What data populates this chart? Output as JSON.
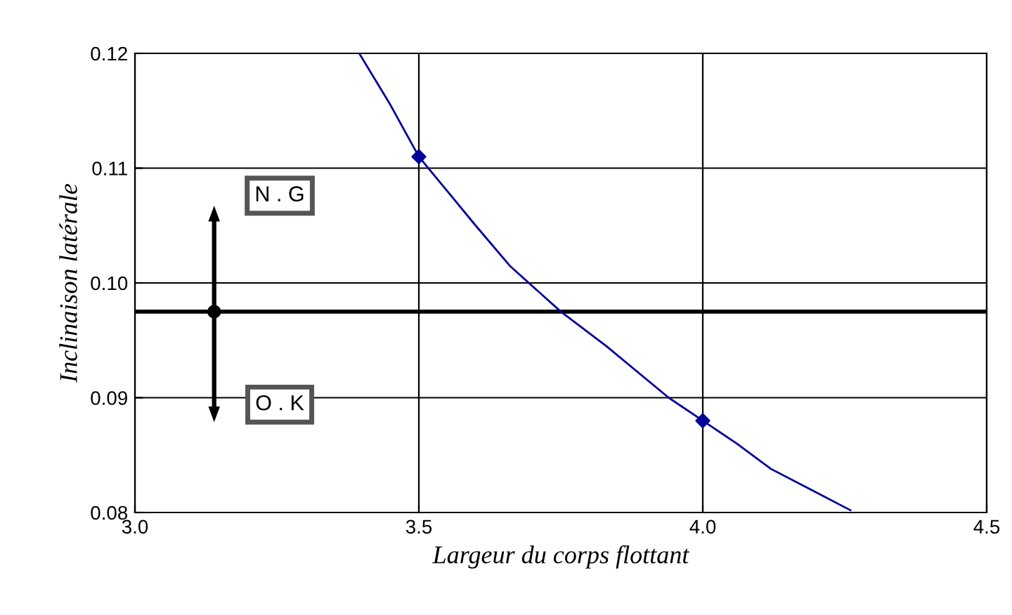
{
  "chart_data": {
    "type": "line",
    "xlabel": "Largeur du corps flottant",
    "ylabel": "Inclinaison latérale",
    "xlim": [
      3.0,
      4.5
    ],
    "ylim": [
      0.08,
      0.12
    ],
    "xticks": [
      {
        "value": 3.0,
        "label": "3.0"
      },
      {
        "value": 3.5,
        "label": "3.5"
      },
      {
        "value": 4.0,
        "label": "4.0"
      },
      {
        "value": 4.5,
        "label": "4.5"
      }
    ],
    "yticks": [
      {
        "value": 0.08,
        "label": "0.08"
      },
      {
        "value": 0.09,
        "label": "0.09"
      },
      {
        "value": 0.1,
        "label": "0.10"
      },
      {
        "value": 0.11,
        "label": "0.11"
      },
      {
        "value": 0.12,
        "label": "0.12"
      }
    ],
    "grid": true,
    "legend": false,
    "series": [
      {
        "color": "#000099",
        "marker": "none",
        "x": [
          3.395,
          3.45,
          3.5,
          3.55,
          3.6,
          3.66,
          3.75,
          3.83,
          3.94,
          4.0,
          4.06,
          4.12,
          4.19,
          4.26
        ],
        "values": [
          0.12,
          0.1155,
          0.111,
          0.108,
          0.105,
          0.1015,
          0.0975,
          0.0945,
          0.09,
          0.088,
          0.086,
          0.0838,
          0.082,
          0.0802
        ]
      },
      {
        "type": "scatter",
        "color": "#000099",
        "marker": "diamond",
        "x": [
          3.5,
          4.0
        ],
        "values": [
          0.111,
          0.088
        ]
      }
    ],
    "ref_lines": [
      {
        "axis": "y",
        "value": 0.0975,
        "color": "#000000",
        "line_style": "solid"
      }
    ],
    "annotations": [
      "N . G",
      "O . K"
    ]
  }
}
